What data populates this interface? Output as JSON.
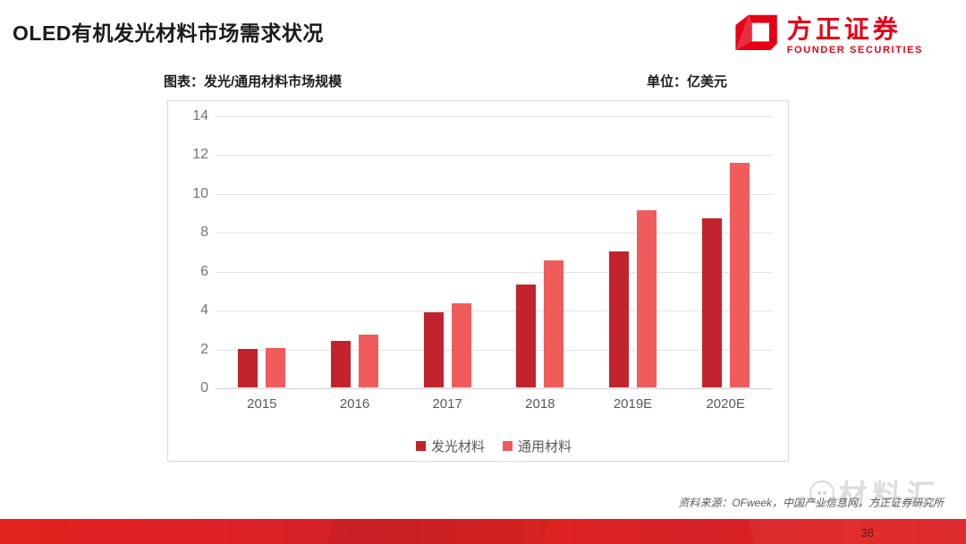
{
  "header": {
    "title": "OLED有机发光材料市场需求状况",
    "logo": {
      "cn": "方正证券",
      "en": "FOUNDER SECURITIES",
      "color": "#e60016"
    }
  },
  "chart_header": {
    "caption": "图表：发光/通用材料市场规模",
    "unit": "单位：亿美元"
  },
  "chart_data": {
    "type": "bar",
    "title": "发光/通用材料市场规模",
    "categories": [
      "2015",
      "2016",
      "2017",
      "2018",
      "2019E",
      "2020E"
    ],
    "series": [
      {
        "name": "发光材料",
        "color": "#c2232c",
        "values": [
          2.0,
          2.4,
          3.85,
          5.3,
          7.0,
          8.7
        ]
      },
      {
        "name": "通用材料",
        "color": "#f05c5c",
        "values": [
          2.05,
          2.7,
          4.35,
          6.55,
          9.1,
          11.55
        ]
      }
    ],
    "xlabel": "",
    "ylabel": "",
    "ylim": [
      0,
      14
    ],
    "ytick_step": 2,
    "grid": true,
    "legend_position": "bottom"
  },
  "footer": {
    "source": "资料来源：OFweek，中国产业信息网，方正证券研究所",
    "page_number": "38"
  },
  "watermark": {
    "text": "材料汇"
  }
}
